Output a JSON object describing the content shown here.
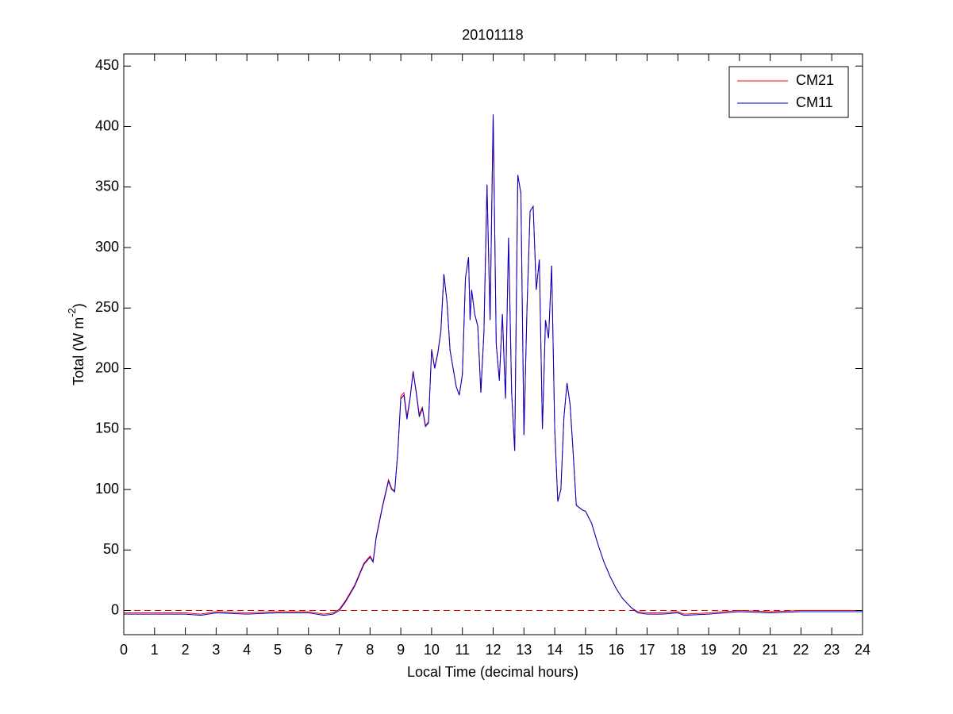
{
  "chart_data": {
    "type": "line",
    "title": "20101118",
    "xlabel": "Local Time (decimal hours)",
    "ylabel": {
      "text": "Total (W m",
      "superscript": "-2",
      "suffix": ")"
    },
    "x": [
      0,
      1,
      2,
      2.5,
      3,
      4,
      5,
      6,
      6.5,
      6.8,
      7,
      7.2,
      7.5,
      7.8,
      8,
      8.1,
      8.2,
      8.4,
      8.6,
      8.7,
      8.8,
      8.9,
      9,
      9.1,
      9.2,
      9.3,
      9.4,
      9.5,
      9.6,
      9.7,
      9.8,
      9.9,
      10,
      10.1,
      10.2,
      10.3,
      10.4,
      10.5,
      10.6,
      10.8,
      10.9,
      11,
      11.1,
      11.2,
      11.25,
      11.3,
      11.4,
      11.5,
      11.6,
      11.7,
      11.8,
      11.9,
      12,
      12.1,
      12.2,
      12.3,
      12.4,
      12.5,
      12.6,
      12.7,
      12.8,
      12.9,
      13,
      13.1,
      13.2,
      13.3,
      13.4,
      13.5,
      13.6,
      13.7,
      13.8,
      13.9,
      14,
      14.1,
      14.2,
      14.3,
      14.4,
      14.5,
      14.6,
      14.7,
      14.9,
      15,
      15.2,
      15.4,
      15.6,
      15.8,
      16,
      16.2,
      16.5,
      16.7,
      17,
      17.5,
      18,
      18.2,
      19,
      20,
      21,
      22,
      23,
      24
    ],
    "series": [
      {
        "name": "CM21",
        "color": "#ff0000",
        "values": [
          -2,
          -2,
          -2,
          -3,
          -1,
          -2,
          -1,
          -1,
          -3,
          -2,
          1,
          8,
          21,
          39,
          45,
          41,
          61,
          86,
          108,
          101,
          99,
          131,
          177,
          180,
          160,
          176,
          198,
          181,
          162,
          168,
          153,
          156,
          216,
          201,
          213,
          231,
          278,
          255,
          215,
          185,
          178,
          195,
          275,
          292,
          240,
          265,
          245,
          235,
          180,
          230,
          352,
          240,
          410,
          220,
          190,
          245,
          175,
          308,
          180,
          132,
          360,
          345,
          145,
          250,
          330,
          334,
          265,
          290,
          150,
          240,
          225,
          285,
          150,
          90,
          100,
          160,
          188,
          170,
          130,
          87,
          83,
          82,
          72,
          55,
          40,
          28,
          18,
          10,
          2,
          -1,
          -2,
          -2,
          -1,
          -3,
          -2,
          0,
          -1,
          0,
          0,
          0
        ]
      },
      {
        "name": "CM11",
        "color": "#0000cc",
        "values": [
          -3,
          -3,
          -3,
          -4,
          -2,
          -3,
          -2,
          -2,
          -4,
          -3,
          0,
          7,
          20,
          38,
          44,
          40,
          60,
          85,
          107,
          100,
          98,
          130,
          175,
          178,
          158,
          175,
          197,
          180,
          160,
          167,
          152,
          155,
          215,
          200,
          212,
          230,
          278,
          255,
          215,
          185,
          178,
          195,
          275,
          292,
          240,
          265,
          245,
          235,
          180,
          230,
          352,
          240,
          410,
          220,
          190,
          245,
          175,
          308,
          180,
          132,
          360,
          345,
          145,
          250,
          330,
          334,
          265,
          290,
          150,
          240,
          225,
          285,
          150,
          90,
          100,
          160,
          188,
          170,
          130,
          87,
          83,
          82,
          72,
          55,
          40,
          28,
          18,
          10,
          2,
          -2,
          -3,
          -3,
          -2,
          -4,
          -3,
          -1,
          -2,
          -1,
          -1,
          -1
        ]
      }
    ],
    "xlim": [
      0,
      24
    ],
    "xticks": [
      0,
      1,
      2,
      3,
      4,
      5,
      6,
      7,
      8,
      9,
      10,
      11,
      12,
      13,
      14,
      15,
      16,
      17,
      18,
      19,
      20,
      21,
      22,
      23,
      24
    ],
    "ylim": [
      -20,
      460
    ],
    "yticks": [
      0,
      50,
      100,
      150,
      200,
      250,
      300,
      350,
      400,
      450
    ],
    "reference_line": {
      "y": 0,
      "color": "#cc0000",
      "dash": true
    },
    "legend": "upper right",
    "grid": false
  }
}
